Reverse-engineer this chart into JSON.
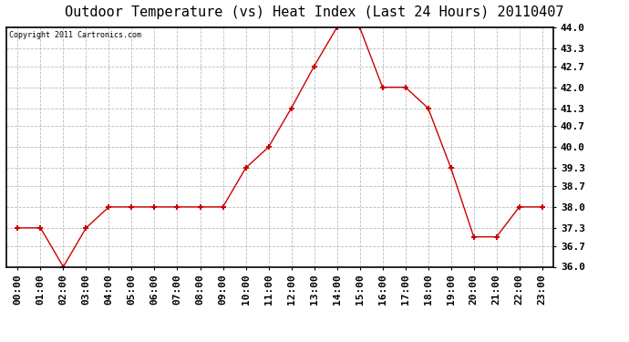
{
  "title": "Outdoor Temperature (vs) Heat Index (Last 24 Hours) 20110407",
  "copyright": "Copyright 2011 Cartronics.com",
  "x_labels": [
    "00:00",
    "01:00",
    "02:00",
    "03:00",
    "04:00",
    "05:00",
    "06:00",
    "07:00",
    "08:00",
    "09:00",
    "10:00",
    "11:00",
    "12:00",
    "13:00",
    "14:00",
    "15:00",
    "16:00",
    "17:00",
    "18:00",
    "19:00",
    "20:00",
    "21:00",
    "22:00",
    "23:00"
  ],
  "y_values": [
    37.3,
    37.3,
    36.0,
    37.3,
    38.0,
    38.0,
    38.0,
    38.0,
    38.0,
    38.0,
    39.3,
    40.0,
    41.3,
    42.7,
    44.0,
    44.0,
    42.0,
    42.0,
    41.3,
    39.3,
    37.0,
    37.0,
    38.0,
    38.0
  ],
  "line_color": "#cc0000",
  "marker": "+",
  "marker_size": 5,
  "marker_color": "#cc0000",
  "y_min": 36.0,
  "y_max": 44.0,
  "y_ticks": [
    36.0,
    36.7,
    37.3,
    38.0,
    38.7,
    39.3,
    40.0,
    40.7,
    41.3,
    42.0,
    42.7,
    43.3,
    44.0
  ],
  "grid_color": "#bbbbbb",
  "grid_style": "--",
  "background_color": "#ffffff",
  "title_fontsize": 11,
  "copyright_fontsize": 6,
  "tick_fontsize": 8,
  "tick_fontweight": "bold"
}
